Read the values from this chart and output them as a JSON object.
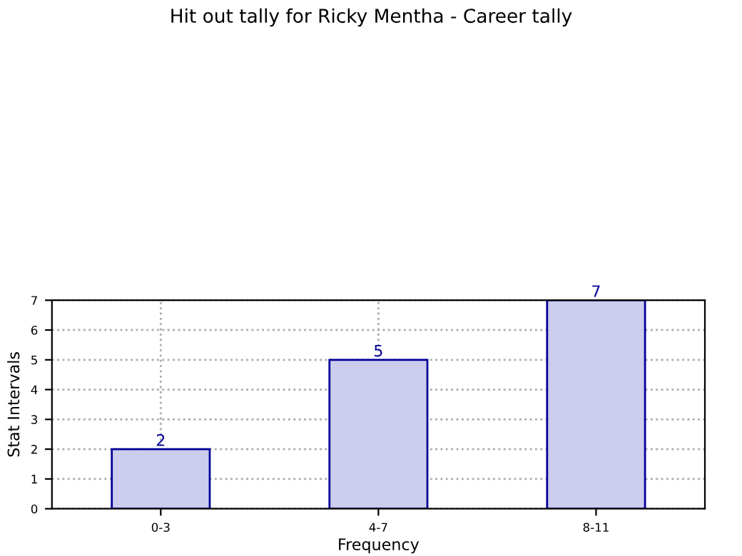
{
  "chart_data": {
    "type": "bar",
    "title": "Hit out tally for Ricky Mentha - Career tally",
    "xlabel": "Frequency",
    "ylabel": "Stat Intervals",
    "categories": [
      "0-3",
      "4-7",
      "8-11"
    ],
    "series": [
      {
        "color": "#ccccee",
        "values": [
          2,
          5,
          7
        ]
      }
    ],
    "ylim": [
      0,
      7
    ],
    "yticks": [
      0,
      1,
      2,
      3,
      4,
      5,
      6,
      7
    ],
    "grid": true,
    "data_labels": true,
    "legend": false
  }
}
